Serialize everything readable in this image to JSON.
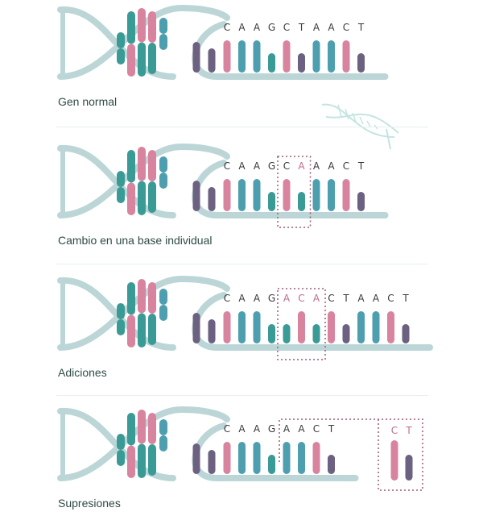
{
  "colors": {
    "C": "#d9849f",
    "A": "#4d9fb0",
    "G": "#3a9a96",
    "T": "#6c6180",
    "backbone": "#bcd6d7",
    "letter": "#3a3a3a",
    "mutation": "#c06b8c",
    "box": "#a0587a"
  },
  "panels": [
    {
      "label": "Gen normal",
      "sequence": [
        "C",
        "A",
        "A",
        "G",
        "C",
        "T",
        "A",
        "A",
        "C",
        "T"
      ],
      "mutated": [],
      "box": null
    },
    {
      "label": "Cambio en una base individual",
      "sequence": [
        "C",
        "A",
        "A",
        "G",
        "C",
        "A",
        "A",
        "A",
        "C",
        "T"
      ],
      "mutated": [
        5
      ],
      "box": [
        4,
        5
      ]
    },
    {
      "label": "Adiciones",
      "sequence": [
        "C",
        "A",
        "A",
        "G",
        "A",
        "C",
        "A",
        "C",
        "T",
        "A",
        "A",
        "C",
        "T"
      ],
      "mutated": [
        4,
        5,
        6
      ],
      "box": [
        4,
        6
      ]
    },
    {
      "label": "Supresiones",
      "sequence": [
        "C",
        "A",
        "A",
        "G",
        "A",
        "A",
        "C",
        "T"
      ],
      "mutated": [],
      "box": "deletion",
      "deleted": [
        "C",
        "T"
      ]
    }
  ]
}
